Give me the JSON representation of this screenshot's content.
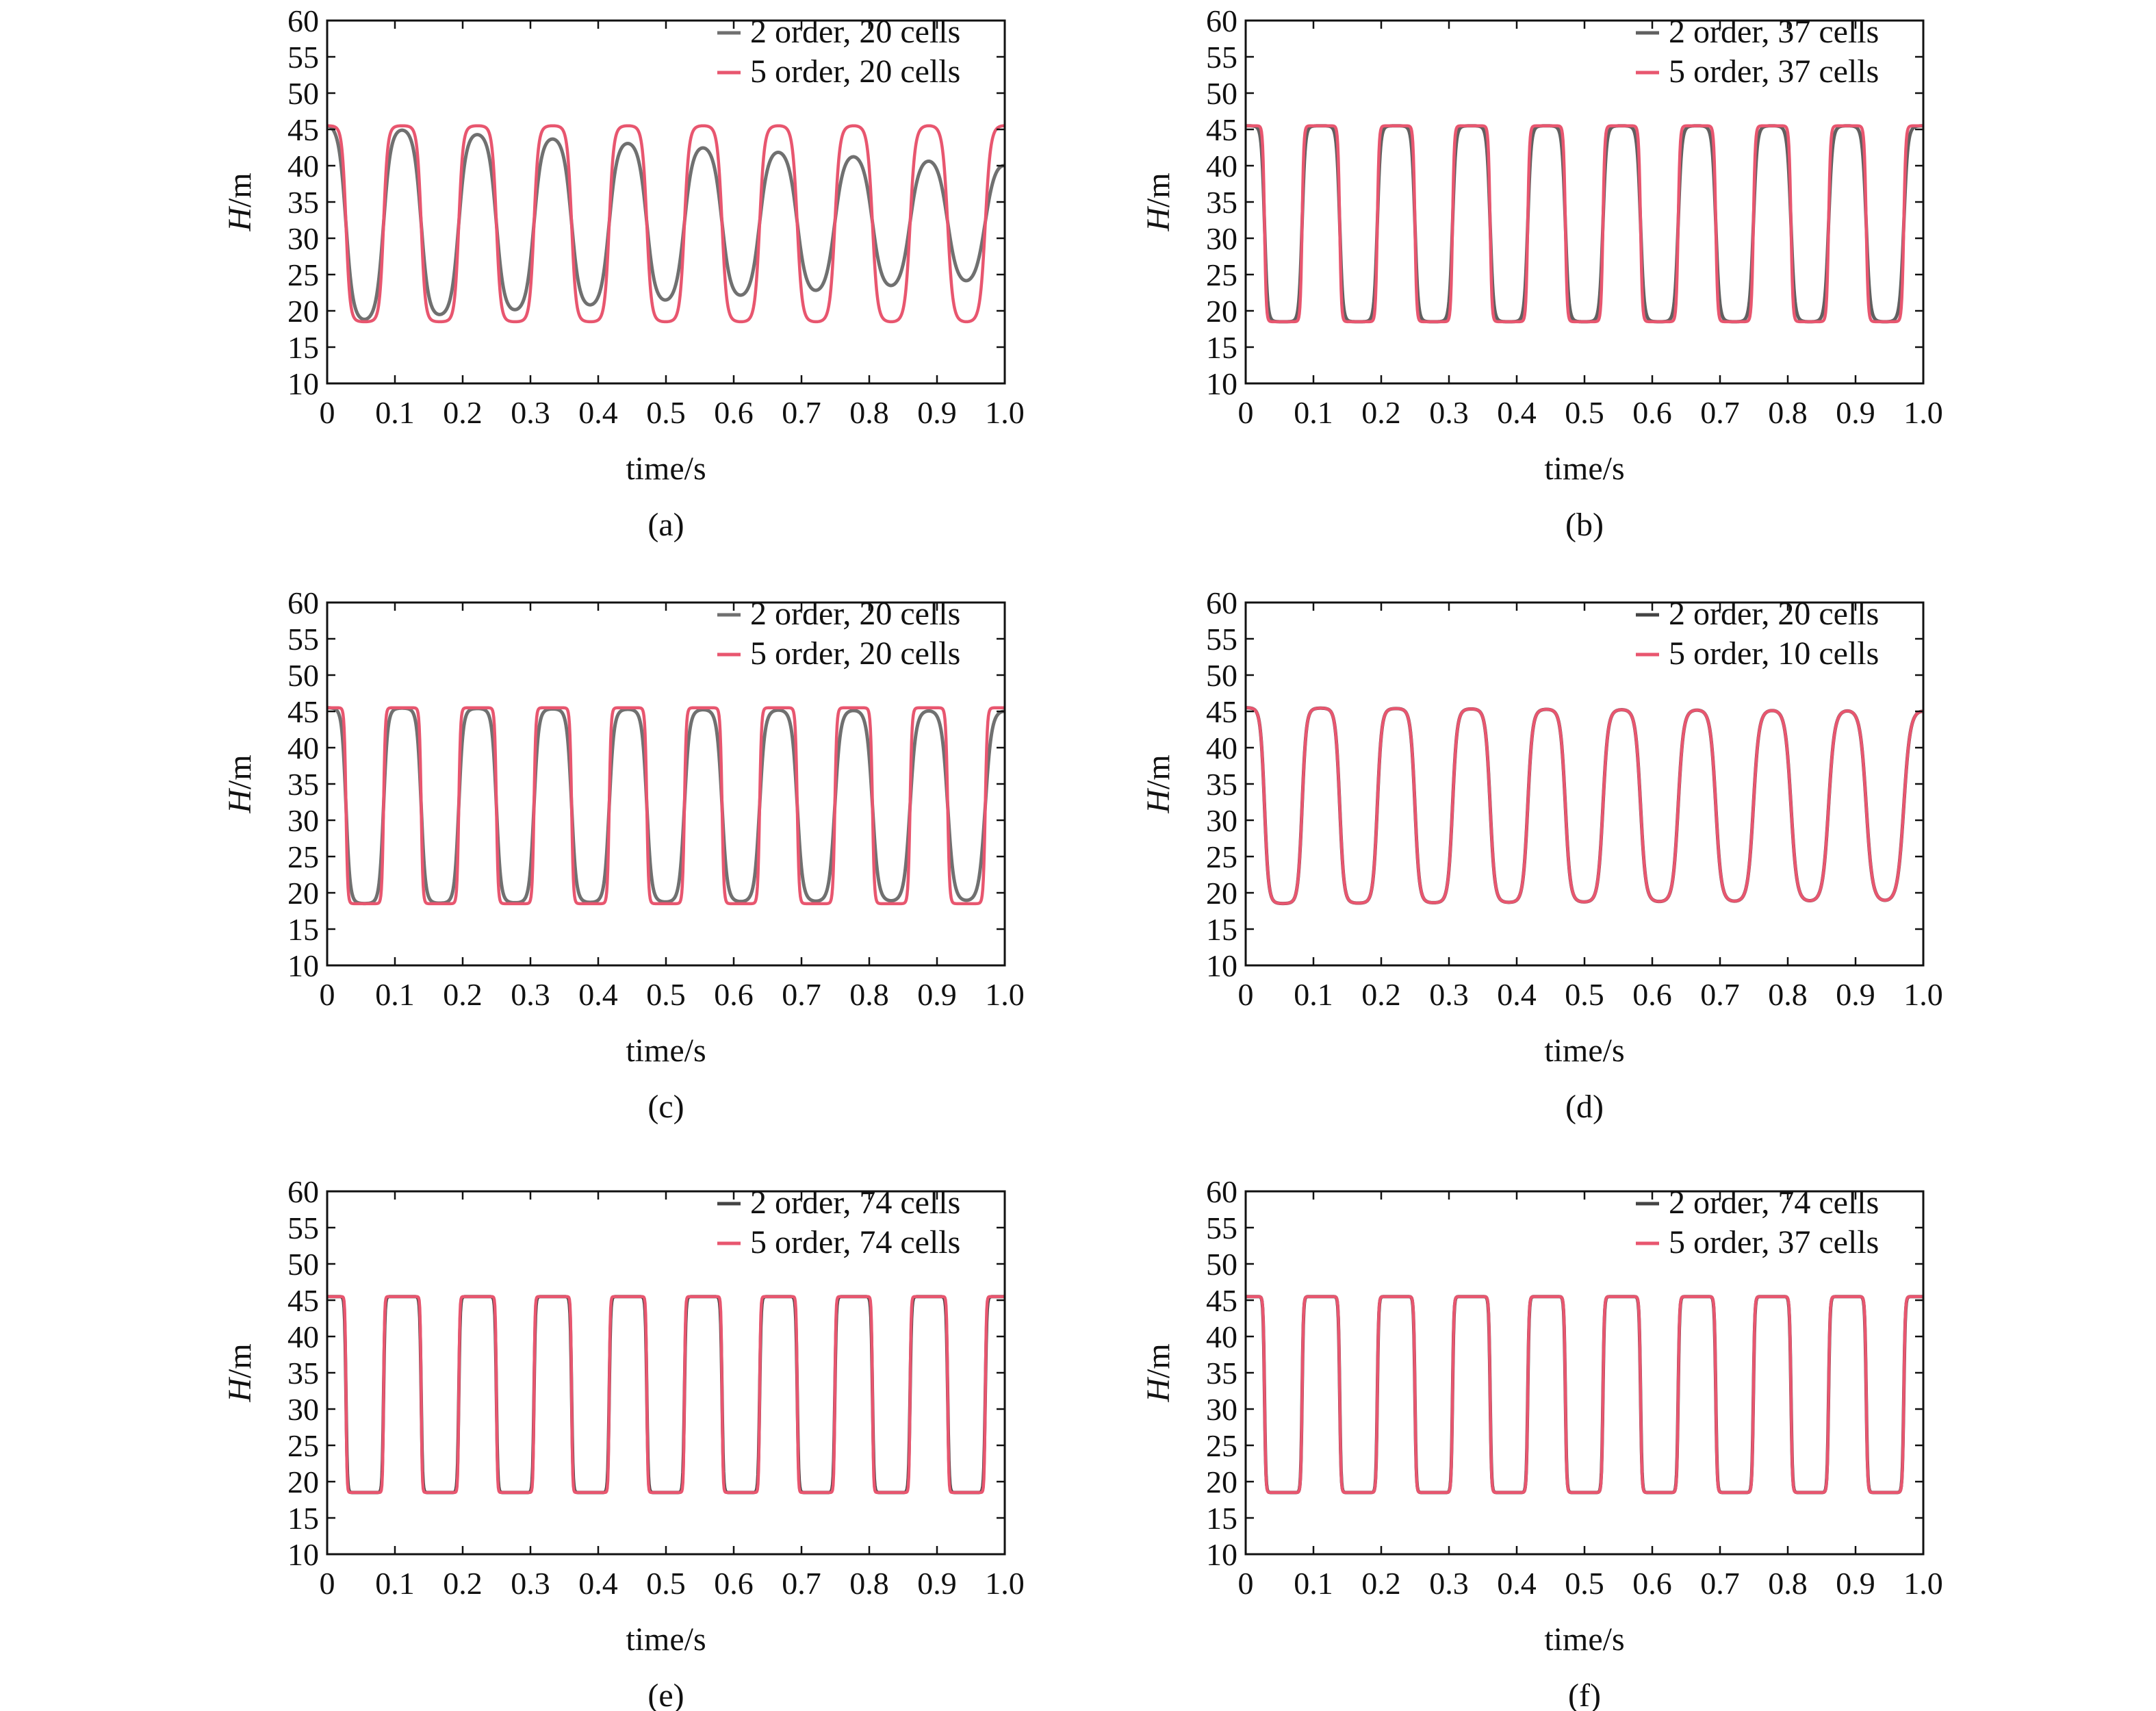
{
  "chart_data": [
    {
      "type": "line",
      "caption": "(a)",
      "xlabel": "time/s",
      "ylabel_italic": "H",
      "ylabel_unit": "/m",
      "xlim": [
        0,
        1.0
      ],
      "ylim": [
        10,
        60
      ],
      "xticks": [
        "0",
        "0.1",
        "0.2",
        "0.3",
        "0.4",
        "0.5",
        "0.6",
        "0.7",
        "0.8",
        "0.9",
        "1.0"
      ],
      "yticks": [
        "60",
        "55",
        "50",
        "45",
        "40",
        "35",
        "30",
        "25",
        "20",
        "15",
        "10"
      ],
      "legend_position": "top-right",
      "series": [
        {
          "name": "2 order, 20 cells",
          "color": "#707070",
          "period": 0.111,
          "phase": 0.0,
          "high": [
            45.5,
            40.0
          ],
          "low": [
            18.5,
            24.5
          ],
          "sharpness": [
            1.6,
            1.0
          ]
        },
        {
          "name": "5 order, 20 cells",
          "color": "#e8566f",
          "period": 0.111,
          "phase": 0.0,
          "high": [
            45.5,
            45.5
          ],
          "low": [
            18.5,
            18.5
          ],
          "sharpness": [
            3.0,
            2.2
          ]
        }
      ]
    },
    {
      "type": "line",
      "caption": "(b)",
      "xlabel": "time/s",
      "ylabel_italic": "H",
      "ylabel_unit": "/m",
      "xlim": [
        0,
        1.0
      ],
      "ylim": [
        10,
        60
      ],
      "xticks": [
        "0",
        "0.1",
        "0.2",
        "0.3",
        "0.4",
        "0.5",
        "0.6",
        "0.7",
        "0.8",
        "0.9",
        "1.0"
      ],
      "yticks": [
        "60",
        "55",
        "50",
        "45",
        "40",
        "35",
        "30",
        "25",
        "20",
        "15",
        "10"
      ],
      "legend_position": "top-right",
      "series": [
        {
          "name": "2 order, 37 cells",
          "color": "#606060",
          "period": 0.111,
          "phase": 0.0,
          "high": [
            45.5,
            45.5
          ],
          "low": [
            18.5,
            18.5
          ],
          "sharpness": [
            4.0,
            3.0
          ]
        },
        {
          "name": "5 order, 37 cells",
          "color": "#e8566f",
          "period": 0.111,
          "phase": 0.0,
          "high": [
            45.5,
            45.5
          ],
          "low": [
            18.5,
            18.5
          ],
          "sharpness": [
            7.0,
            6.0
          ]
        }
      ]
    },
    {
      "type": "line",
      "caption": "(c)",
      "xlabel": "time/s",
      "ylabel_italic": "H",
      "ylabel_unit": "/m",
      "xlim": [
        0,
        1.0
      ],
      "ylim": [
        10,
        60
      ],
      "xticks": [
        "0",
        "0.1",
        "0.2",
        "0.3",
        "0.4",
        "0.5",
        "0.6",
        "0.7",
        "0.8",
        "0.9",
        "1.0"
      ],
      "yticks": [
        "60",
        "55",
        "50",
        "45",
        "40",
        "35",
        "30",
        "25",
        "20",
        "15",
        "10"
      ],
      "legend_position": "top-right",
      "series": [
        {
          "name": "2 order, 20 cells",
          "color": "#707070",
          "period": 0.111,
          "phase": 0.0,
          "high": [
            45.5,
            45.0
          ],
          "low": [
            18.5,
            19.0
          ],
          "sharpness": [
            3.0,
            1.8
          ]
        },
        {
          "name": "5 order, 20 cells",
          "color": "#e8566f",
          "period": 0.111,
          "phase": 0.0,
          "high": [
            45.5,
            45.5
          ],
          "low": [
            18.5,
            18.5
          ],
          "sharpness": [
            7.0,
            6.0
          ]
        }
      ]
    },
    {
      "type": "line",
      "caption": "(d)",
      "xlabel": "time/s",
      "ylabel_italic": "H",
      "ylabel_unit": "/m",
      "xlim": [
        0,
        1.0
      ],
      "ylim": [
        10,
        60
      ],
      "xticks": [
        "0",
        "0.1",
        "0.2",
        "0.3",
        "0.4",
        "0.5",
        "0.6",
        "0.7",
        "0.8",
        "0.9",
        "1.0"
      ],
      "yticks": [
        "60",
        "55",
        "50",
        "45",
        "40",
        "35",
        "30",
        "25",
        "20",
        "15",
        "10"
      ],
      "legend_position": "top-right",
      "series": [
        {
          "name": "2 order, 20 cells",
          "color": "#444444",
          "period": 0.111,
          "phase": 0.0,
          "high": [
            45.5,
            45.0
          ],
          "low": [
            18.5,
            19.0
          ],
          "sharpness": [
            3.0,
            1.8
          ]
        },
        {
          "name": "5 order, 10 cells",
          "color": "#e8566f",
          "period": 0.111,
          "phase": 0.0,
          "high": [
            45.5,
            45.0
          ],
          "low": [
            18.5,
            19.0
          ],
          "sharpness": [
            3.0,
            1.8
          ]
        }
      ]
    },
    {
      "type": "line",
      "caption": "(e)",
      "xlabel": "time/s",
      "ylabel_italic": "H",
      "ylabel_unit": "/m",
      "xlim": [
        0,
        1.0
      ],
      "ylim": [
        10,
        60
      ],
      "xticks": [
        "0",
        "0.1",
        "0.2",
        "0.3",
        "0.4",
        "0.5",
        "0.6",
        "0.7",
        "0.8",
        "0.9",
        "1.0"
      ],
      "yticks": [
        "60",
        "55",
        "50",
        "45",
        "40",
        "35",
        "30",
        "25",
        "20",
        "15",
        "10"
      ],
      "legend_position": "top-right",
      "series": [
        {
          "name": "2 order, 74 cells",
          "color": "#444444",
          "period": 0.111,
          "phase": 0.0,
          "high": [
            45.5,
            45.5
          ],
          "low": [
            18.5,
            18.5
          ],
          "sharpness": [
            9.0,
            8.0
          ]
        },
        {
          "name": "5 order, 74 cells",
          "color": "#e8566f",
          "period": 0.111,
          "phase": 0.0,
          "high": [
            45.5,
            45.5
          ],
          "low": [
            18.5,
            18.5
          ],
          "sharpness": [
            12.0,
            11.0
          ]
        }
      ]
    },
    {
      "type": "line",
      "caption": "(f)",
      "xlabel": "time/s",
      "ylabel_italic": "H",
      "ylabel_unit": "/m",
      "xlim": [
        0,
        1.0
      ],
      "ylim": [
        10,
        60
      ],
      "xticks": [
        "0",
        "0.1",
        "0.2",
        "0.3",
        "0.4",
        "0.5",
        "0.6",
        "0.7",
        "0.8",
        "0.9",
        "1.0"
      ],
      "yticks": [
        "60",
        "55",
        "50",
        "45",
        "40",
        "35",
        "30",
        "25",
        "20",
        "15",
        "10"
      ],
      "legend_position": "top-right",
      "series": [
        {
          "name": "2 order, 74 cells",
          "color": "#444444",
          "period": 0.111,
          "phase": 0.0,
          "high": [
            45.5,
            45.5
          ],
          "low": [
            18.5,
            18.5
          ],
          "sharpness": [
            9.0,
            8.0
          ]
        },
        {
          "name": "5 order, 37 cells",
          "color": "#e8566f",
          "period": 0.111,
          "phase": 0.0,
          "high": [
            45.5,
            45.5
          ],
          "low": [
            18.5,
            18.5
          ],
          "sharpness": [
            9.5,
            8.5
          ]
        }
      ]
    }
  ]
}
